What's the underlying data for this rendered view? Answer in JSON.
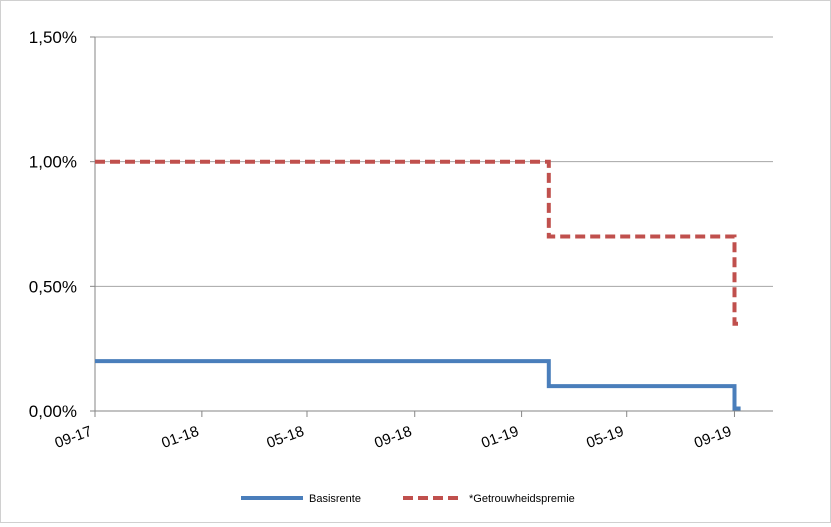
{
  "chart_data": {
    "type": "line",
    "step": true,
    "title": "",
    "xlabel": "",
    "ylabel": "",
    "ylim": [
      0,
      1.5
    ],
    "yticks": [
      0,
      0.5,
      1.0,
      1.5
    ],
    "ytick_labels": [
      "0,00%",
      "0,50%",
      "1,00%",
      "1,50%"
    ],
    "xlim": [
      "2017-09-01",
      "2019-10-15"
    ],
    "xticks": [
      "2017-09-01",
      "2018-01-01",
      "2018-05-01",
      "2018-09-01",
      "2019-01-01",
      "2019-05-01",
      "2019-09-01"
    ],
    "xtick_labels": [
      "09-17",
      "01-18",
      "05-18",
      "09-18",
      "01-19",
      "05-19",
      "09-19"
    ],
    "grid": "horizontal",
    "legend_position": "bottom",
    "series": [
      {
        "name": "Basisrente",
        "color": "#4a7ebb",
        "style": "solid",
        "points": [
          {
            "x": "2017-09-01",
            "y": 0.2
          },
          {
            "x": "2019-02-01",
            "y": 0.2
          },
          {
            "x": "2019-02-01",
            "y": 0.1
          },
          {
            "x": "2019-09-01",
            "y": 0.1
          },
          {
            "x": "2019-09-01",
            "y": 0.01
          },
          {
            "x": "2019-09-08",
            "y": 0.01
          }
        ]
      },
      {
        "name": "*Getrouwheidspremie",
        "color": "#c0504d",
        "style": "dashed",
        "points": [
          {
            "x": "2017-09-01",
            "y": 1.0
          },
          {
            "x": "2019-02-01",
            "y": 1.0
          },
          {
            "x": "2019-02-01",
            "y": 0.7
          },
          {
            "x": "2019-09-01",
            "y": 0.7
          },
          {
            "x": "2019-09-01",
            "y": 0.35
          },
          {
            "x": "2019-09-08",
            "y": 0.35
          }
        ]
      }
    ]
  }
}
